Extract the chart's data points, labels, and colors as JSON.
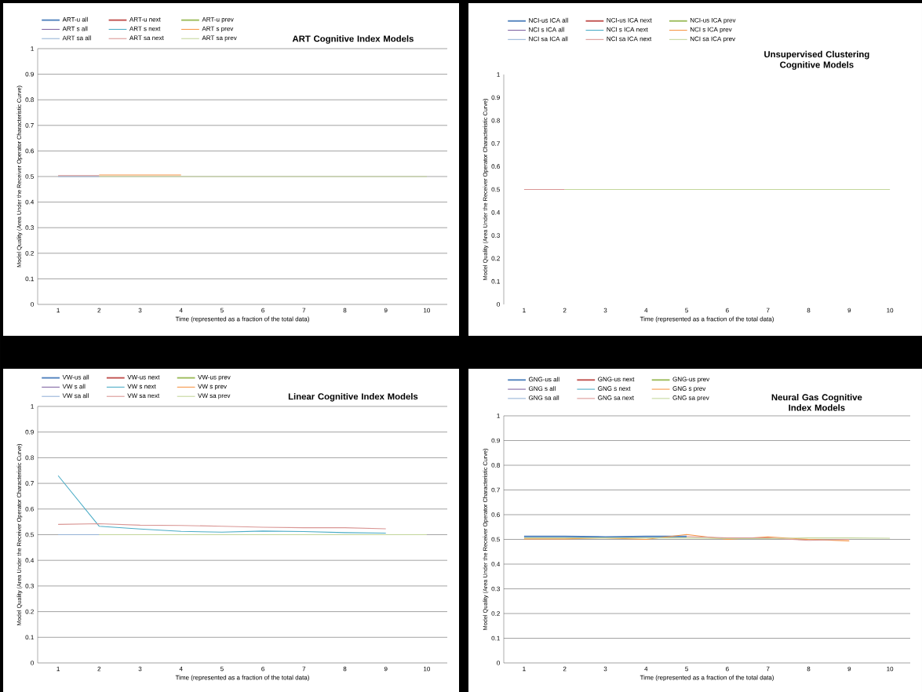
{
  "chart_data": [
    {
      "type": "line",
      "title": "ART Cognitive  Index Models",
      "xlabel": "Time (represented as a fraction of the total data)",
      "ylabel": "Model Quality (Area Under the Receiver Operator Characteristic Curve)",
      "categories": [
        "1",
        "2",
        "3",
        "4",
        "5",
        "6",
        "7",
        "8",
        "9",
        "10"
      ],
      "ylim": [
        0,
        1
      ],
      "yticks": [
        0,
        0.1,
        0.2,
        0.3,
        0.4,
        0.5,
        0.6,
        0.7,
        0.8,
        0.9,
        1
      ],
      "grid": "y",
      "legend": "top left",
      "series": [
        {
          "name": "ART-u all",
          "color": "#4f81bd",
          "values": [
            null,
            null,
            null,
            null,
            null,
            null,
            null,
            null,
            null,
            null
          ]
        },
        {
          "name": "ART-u next",
          "color": "#c0504d",
          "values": [
            null,
            null,
            null,
            null,
            null,
            null,
            null,
            null,
            null,
            null
          ]
        },
        {
          "name": "ART-u prev",
          "color": "#9bbb59",
          "values": [
            null,
            null,
            null,
            null,
            null,
            null,
            null,
            null,
            null,
            null
          ]
        },
        {
          "name": "ART s all",
          "color": "#8064a2",
          "values": [
            null,
            null,
            null,
            null,
            null,
            null,
            null,
            null,
            null,
            null
          ]
        },
        {
          "name": "ART s next",
          "color": "#4bacc6",
          "values": [
            null,
            null,
            null,
            null,
            null,
            null,
            null,
            null,
            null,
            null
          ]
        },
        {
          "name": "ART s prev",
          "color": "#f79646",
          "values": [
            null,
            0.506,
            0.506,
            0.506,
            null,
            null,
            null,
            null,
            null,
            null
          ]
        },
        {
          "name": "ART sa all",
          "color": "#95b3d7",
          "values": [
            0.5,
            0.5,
            null,
            null,
            null,
            null,
            null,
            null,
            null,
            null
          ]
        },
        {
          "name": "ART sa next",
          "color": "#d99694",
          "values": [
            0.504,
            0.504,
            null,
            null,
            null,
            null,
            null,
            null,
            null,
            null
          ]
        },
        {
          "name": "ART sa prev",
          "color": "#c3d69b",
          "values": [
            null,
            0.5,
            0.5,
            0.5,
            0.5,
            0.5,
            0.5,
            0.5,
            0.5,
            0.5
          ]
        }
      ]
    },
    {
      "type": "line",
      "title": "Unsupervised Clustering Cognitive Models",
      "xlabel": "Time (represented as a fraction of the total data)",
      "ylabel": "Model Quality (Area Under the Receiver Operator Characteristic Curve)",
      "categories": [
        "1",
        "2",
        "3",
        "4",
        "5",
        "6",
        "7",
        "8",
        "9",
        "10"
      ],
      "ylim": [
        0,
        1
      ],
      "yticks": [
        0,
        0.1,
        0.2,
        0.3,
        0.4,
        0.5,
        0.6,
        0.7,
        0.8,
        0.9,
        1
      ],
      "legend": "top left",
      "series": [
        {
          "name": "NCI-us ICA all",
          "color": "#4f81bd",
          "values": [
            null,
            null,
            null,
            null,
            null,
            null,
            null,
            null,
            null,
            null
          ]
        },
        {
          "name": "NCI-us ICA next",
          "color": "#c0504d",
          "values": [
            null,
            null,
            null,
            null,
            null,
            null,
            null,
            null,
            null,
            null
          ]
        },
        {
          "name": "NCI-us ICA prev",
          "color": "#9bbb59",
          "values": [
            null,
            null,
            null,
            null,
            null,
            null,
            null,
            null,
            null,
            null
          ]
        },
        {
          "name": "NCI s ICA all",
          "color": "#8064a2",
          "values": [
            null,
            null,
            null,
            null,
            null,
            null,
            null,
            null,
            null,
            null
          ]
        },
        {
          "name": "NCI s ICA next",
          "color": "#4bacc6",
          "values": [
            null,
            null,
            null,
            null,
            null,
            null,
            null,
            null,
            null,
            null
          ]
        },
        {
          "name": "NCI s ICA prev",
          "color": "#f79646",
          "values": [
            null,
            null,
            null,
            null,
            null,
            null,
            null,
            null,
            null,
            null
          ]
        },
        {
          "name": "NCI sa ICA all",
          "color": "#95b3d7",
          "values": [
            null,
            null,
            null,
            null,
            null,
            null,
            null,
            null,
            null,
            null
          ]
        },
        {
          "name": "NCI sa ICA next",
          "color": "#d99694",
          "values": [
            0.5,
            0.5,
            null,
            null,
            null,
            null,
            null,
            null,
            null,
            null
          ]
        },
        {
          "name": "NCI sa ICA prev",
          "color": "#c3d69b",
          "values": [
            null,
            0.5,
            0.5,
            0.5,
            0.5,
            0.5,
            0.5,
            0.5,
            0.5,
            0.5
          ]
        }
      ]
    },
    {
      "type": "line",
      "title": "Linear Cognitive  Index Models",
      "xlabel": "Time (represented as a fraction of the total data)",
      "ylabel": "Model Quality (Area Under the Receiver Operator Characteristic Curve)",
      "categories": [
        "1",
        "2",
        "3",
        "4",
        "5",
        "6",
        "7",
        "8",
        "9",
        "10"
      ],
      "ylim": [
        0,
        1
      ],
      "yticks": [
        0,
        0.1,
        0.2,
        0.3,
        0.4,
        0.5,
        0.6,
        0.7,
        0.8,
        0.9,
        1
      ],
      "grid": "y",
      "legend": "top left",
      "series": [
        {
          "name": "VW-us all",
          "color": "#4f81bd",
          "values": [
            null,
            null,
            null,
            null,
            null,
            null,
            null,
            null,
            null,
            null
          ]
        },
        {
          "name": "VW-us next",
          "color": "#c0504d",
          "values": [
            null,
            null,
            null,
            null,
            null,
            null,
            null,
            null,
            null,
            null
          ]
        },
        {
          "name": "VW-us prev",
          "color": "#9bbb59",
          "values": [
            null,
            null,
            null,
            null,
            null,
            null,
            null,
            null,
            null,
            null
          ]
        },
        {
          "name": "VW s all",
          "color": "#8064a2",
          "values": [
            null,
            null,
            null,
            null,
            null,
            null,
            null,
            null,
            null,
            null
          ]
        },
        {
          "name": "VW s next",
          "color": "#4bacc6",
          "values": [
            0.73,
            0.533,
            0.522,
            0.513,
            0.51,
            0.514,
            0.512,
            0.508,
            0.506,
            null
          ]
        },
        {
          "name": "VW s prev",
          "color": "#f79646",
          "values": [
            null,
            null,
            null,
            null,
            null,
            null,
            null,
            null,
            null,
            null
          ]
        },
        {
          "name": "VW sa all",
          "color": "#95b3d7",
          "values": [
            0.5,
            0.5,
            null,
            null,
            null,
            null,
            null,
            null,
            null,
            null
          ]
        },
        {
          "name": "VW sa next",
          "color": "#d99694",
          "values": [
            0.54,
            0.543,
            0.537,
            0.536,
            0.533,
            0.529,
            0.527,
            0.527,
            0.523,
            null
          ]
        },
        {
          "name": "VW sa prev",
          "color": "#c3d69b",
          "values": [
            null,
            0.5,
            0.5,
            0.5,
            0.5,
            0.5,
            0.5,
            0.5,
            0.5,
            0.5
          ]
        }
      ]
    },
    {
      "type": "line",
      "title": "Neural Gas Cognitive  Index Models",
      "xlabel": "Time (represented as a fraction of the total data)",
      "ylabel": "Model Quality (Area Under the Receiver Operator Characteristic Curve)",
      "categories": [
        "1",
        "2",
        "3",
        "4",
        "5",
        "6",
        "7",
        "8",
        "9",
        "10"
      ],
      "ylim": [
        0,
        1
      ],
      "yticks": [
        0,
        0.1,
        0.2,
        0.3,
        0.4,
        0.5,
        0.6,
        0.7,
        0.8,
        0.9,
        1
      ],
      "grid": "y",
      "legend": "top left",
      "series": [
        {
          "name": "GNG-us all",
          "color": "#4f81bd",
          "values": [
            0.512,
            0.512,
            0.51,
            0.512,
            0.512,
            null,
            null,
            null,
            null,
            null
          ]
        },
        {
          "name": "GNG-us next",
          "color": "#c0504d",
          "values": [
            null,
            null,
            null,
            null,
            null,
            null,
            null,
            null,
            null,
            null
          ]
        },
        {
          "name": "GNG-us prev",
          "color": "#9bbb59",
          "values": [
            null,
            null,
            null,
            null,
            null,
            null,
            null,
            null,
            null,
            null
          ]
        },
        {
          "name": "GNG s all",
          "color": "#8064a2",
          "values": [
            null,
            null,
            null,
            null,
            null,
            null,
            null,
            null,
            null,
            null
          ]
        },
        {
          "name": "GNG s next",
          "color": "#4bacc6",
          "values": [
            null,
            null,
            null,
            null,
            null,
            null,
            null,
            null,
            null,
            null
          ]
        },
        {
          "name": "GNG s prev",
          "color": "#f79646",
          "values": [
            0.502,
            0.502,
            0.506,
            0.5,
            0.52,
            0.5,
            0.51,
            0.5,
            0.494,
            null
          ]
        },
        {
          "name": "GNG sa all",
          "color": "#95b3d7",
          "values": [
            null,
            null,
            null,
            null,
            null,
            null,
            null,
            null,
            null,
            null
          ]
        },
        {
          "name": "GNG sa next",
          "color": "#d99694",
          "values": [
            null,
            null,
            null,
            null,
            0.512,
            0.506,
            0.506,
            0.496,
            0.5,
            null
          ]
        },
        {
          "name": "GNG sa prev",
          "color": "#c3d69b",
          "values": [
            0.506,
            0.506,
            0.506,
            0.506,
            0.506,
            0.503,
            0.503,
            0.506,
            0.506,
            0.505
          ]
        }
      ]
    }
  ]
}
